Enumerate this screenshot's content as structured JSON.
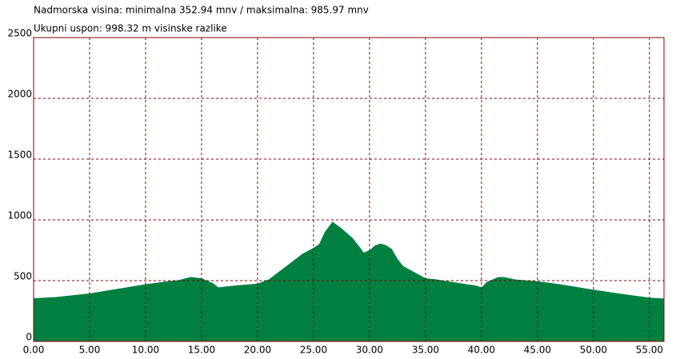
{
  "chart_data": {
    "type": "area",
    "title": "Nadmorska visina: minimalna 352.94 mnv / maksimalna: 985.97 mnv",
    "subtitle": "Ukupni uspon: 998.32 m visinske razlike",
    "color": "#008040",
    "grid": true,
    "x": [
      0,
      2,
      5,
      8,
      10,
      12,
      13,
      14,
      15,
      16,
      16.5,
      18,
      20,
      21,
      22,
      23,
      24,
      25,
      25.5,
      26,
      26.7,
      27.5,
      28.5,
      29,
      29.5,
      30,
      30.5,
      31,
      31.5,
      32,
      32.5,
      33,
      34,
      35,
      36,
      38,
      39.5,
      40,
      40.5,
      41.5,
      42,
      43,
      45,
      47,
      50,
      53,
      55,
      56.3
    ],
    "values": [
      355,
      365,
      395,
      440,
      470,
      495,
      505,
      530,
      520,
      480,
      445,
      460,
      475,
      510,
      580,
      650,
      720,
      770,
      800,
      900,
      985,
      930,
      850,
      790,
      730,
      750,
      790,
      805,
      790,
      760,
      680,
      620,
      570,
      520,
      510,
      480,
      460,
      445,
      490,
      530,
      530,
      510,
      495,
      470,
      425,
      385,
      360,
      353
    ],
    "xlim": [
      0,
      56.3
    ],
    "ylim": [
      0,
      2500
    ],
    "xticks": [
      {
        "value": 0,
        "label": "0.00"
      },
      {
        "value": 5,
        "label": "5.00"
      },
      {
        "value": 10,
        "label": "10.00"
      },
      {
        "value": 15,
        "label": "15.00"
      },
      {
        "value": 20,
        "label": "20.00"
      },
      {
        "value": 25,
        "label": "25.00"
      },
      {
        "value": 30,
        "label": "30.00"
      },
      {
        "value": 35,
        "label": "35.00"
      },
      {
        "value": 40,
        "label": "40.00"
      },
      {
        "value": 45,
        "label": "45.00"
      },
      {
        "value": 50,
        "label": "50.00"
      },
      {
        "value": 55,
        "label": "55.00"
      }
    ],
    "yticks": [
      0,
      500,
      1000,
      1500,
      2000,
      2500
    ]
  }
}
